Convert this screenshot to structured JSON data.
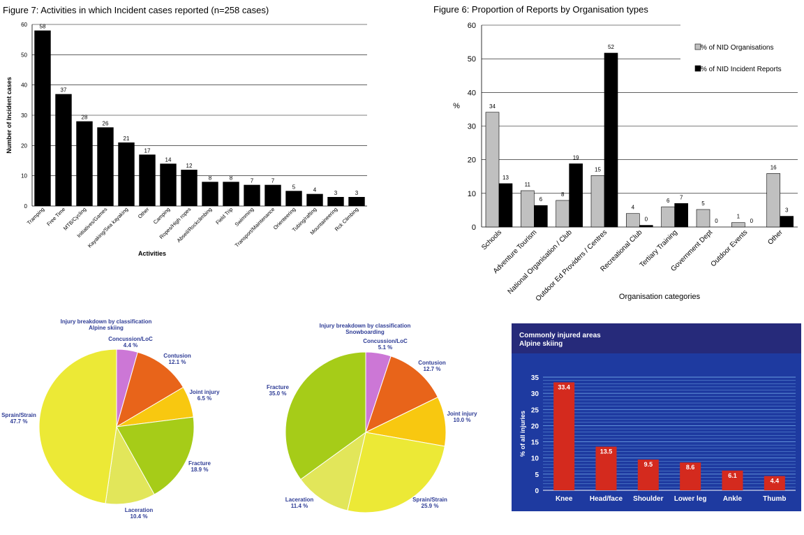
{
  "chart_data": [
    {
      "type": "bar",
      "title": "Figure 7: Activities in which Incident cases reported (n=258 cases)",
      "xlabel": "Activities",
      "ylabel": "Number of Incident cases",
      "ylim": [
        0,
        60
      ],
      "yticks": [
        0,
        10,
        20,
        30,
        40,
        50,
        60
      ],
      "grid": true,
      "categories": [
        "Tramping",
        "Free Time",
        "MTB/Cycling",
        "Initiatives/Games",
        "Kayaking/Sea kayaking",
        "Other",
        "Camping",
        "Ropes/High ropes",
        "Abseil/Rockclimbing",
        "Field Trip",
        "Swimming",
        "Transport/Maintenance",
        "Orienteering",
        "Tubing/rafting",
        "Mountaineering",
        "Rck Climbing"
      ],
      "values": [
        58,
        37,
        28,
        26,
        21,
        17,
        14,
        12,
        8,
        8,
        7,
        7,
        5,
        4,
        3,
        3
      ],
      "colors": {
        "bar": "#000000"
      }
    },
    {
      "type": "bar",
      "title": "Figure 6: Proportion of Reports by Organisation types",
      "xlabel": "Organisation categories",
      "ylabel": "%",
      "ylim": [
        0,
        60
      ],
      "yticks": [
        0,
        10,
        20,
        30,
        40,
        50,
        60
      ],
      "grid": true,
      "legend_position": "top-right",
      "categories": [
        "Schools",
        "Adventure Tourism",
        "National Organisation / Club",
        "Outdoor Ed Providers / Centres",
        "Recreational Club",
        "Tertiary Training",
        "Government Dept",
        "Outdoor Events",
        "Other"
      ],
      "series": [
        {
          "name": "% of NID Organisations",
          "values": [
            34,
            11,
            8,
            15,
            4,
            6,
            5,
            1,
            16
          ],
          "color": "#c0c0c0"
        },
        {
          "name": "% of NID Incident Reports",
          "values": [
            13,
            6,
            19,
            52,
            0,
            7,
            0,
            0,
            3
          ],
          "color": "#000000"
        }
      ],
      "plotted_values": {
        "% of NID Organisations": [
          34.1,
          10.8,
          7.9,
          15.3,
          4.0,
          6.0,
          5.2,
          1.3,
          15.9
        ],
        "% of NID Incident Reports": [
          12.9,
          6.4,
          18.8,
          51.7,
          0.5,
          7.0,
          0,
          0,
          3.2
        ]
      }
    },
    {
      "type": "pie",
      "title": "Injury breakdown by classification",
      "subtitle": "Alpine skiing",
      "slices": [
        {
          "label": "Concussion/LoC",
          "value": 4.4,
          "value_label": "4.4 %",
          "color": "#cc77d6"
        },
        {
          "label": "Contusion",
          "value": 12.1,
          "value_label": "12.1 %",
          "color": "#e8641a"
        },
        {
          "label": "Joint injury",
          "value": 6.5,
          "value_label": "6.5 %",
          "color": "#f8c810"
        },
        {
          "label": "Fracture",
          "value": 18.9,
          "value_label": "18.9 %",
          "color": "#a6cc18"
        },
        {
          "label": "Laceration",
          "value": 10.4,
          "value_label": "10.4 %",
          "color": "#e2e65a"
        },
        {
          "label": "Sprain/Strain",
          "value": 47.7,
          "value_label": "47.7 %",
          "color": "#ece936"
        }
      ]
    },
    {
      "type": "pie",
      "title": "Injury breakdown by classification",
      "subtitle": "Snowboarding",
      "slices": [
        {
          "label": "Concussion/LoC",
          "value": 5.1,
          "value_label": "5.1 %",
          "color": "#cc77d6"
        },
        {
          "label": "Contusion",
          "value": 12.7,
          "value_label": "12.7 %",
          "color": "#e8641a"
        },
        {
          "label": "Joint injury",
          "value": 10.0,
          "value_label": "10.0 %",
          "color": "#f8c810"
        },
        {
          "label": "Sprain/Strain",
          "value": 25.9,
          "value_label": "25.9 %",
          "color": "#ece936"
        },
        {
          "label": "Laceration",
          "value": 11.4,
          "value_label": "11.4 %",
          "color": "#e2e65a"
        },
        {
          "label": "Fracture",
          "value": 35.0,
          "value_label": "35.0 %",
          "color": "#a6cc18"
        }
      ]
    },
    {
      "type": "bar",
      "title": "Commonly injured areas",
      "subtitle": "Alpine skiing",
      "ylabel": "% of all injuries",
      "ylim": [
        0,
        35
      ],
      "yticks": [
        0,
        5,
        10,
        15,
        20,
        25,
        30,
        35
      ],
      "grid": true,
      "categories": [
        "Knee",
        "Head/face",
        "Shoulder",
        "Lower leg",
        "Ankle",
        "Thumb"
      ],
      "values": [
        33.4,
        13.5,
        9.5,
        8.6,
        6.1,
        4.4
      ],
      "colors": {
        "bar": "#d42a1e",
        "background": "#1e3aa0",
        "header": "#262a7a",
        "grid": "#6a9ee0"
      }
    }
  ]
}
